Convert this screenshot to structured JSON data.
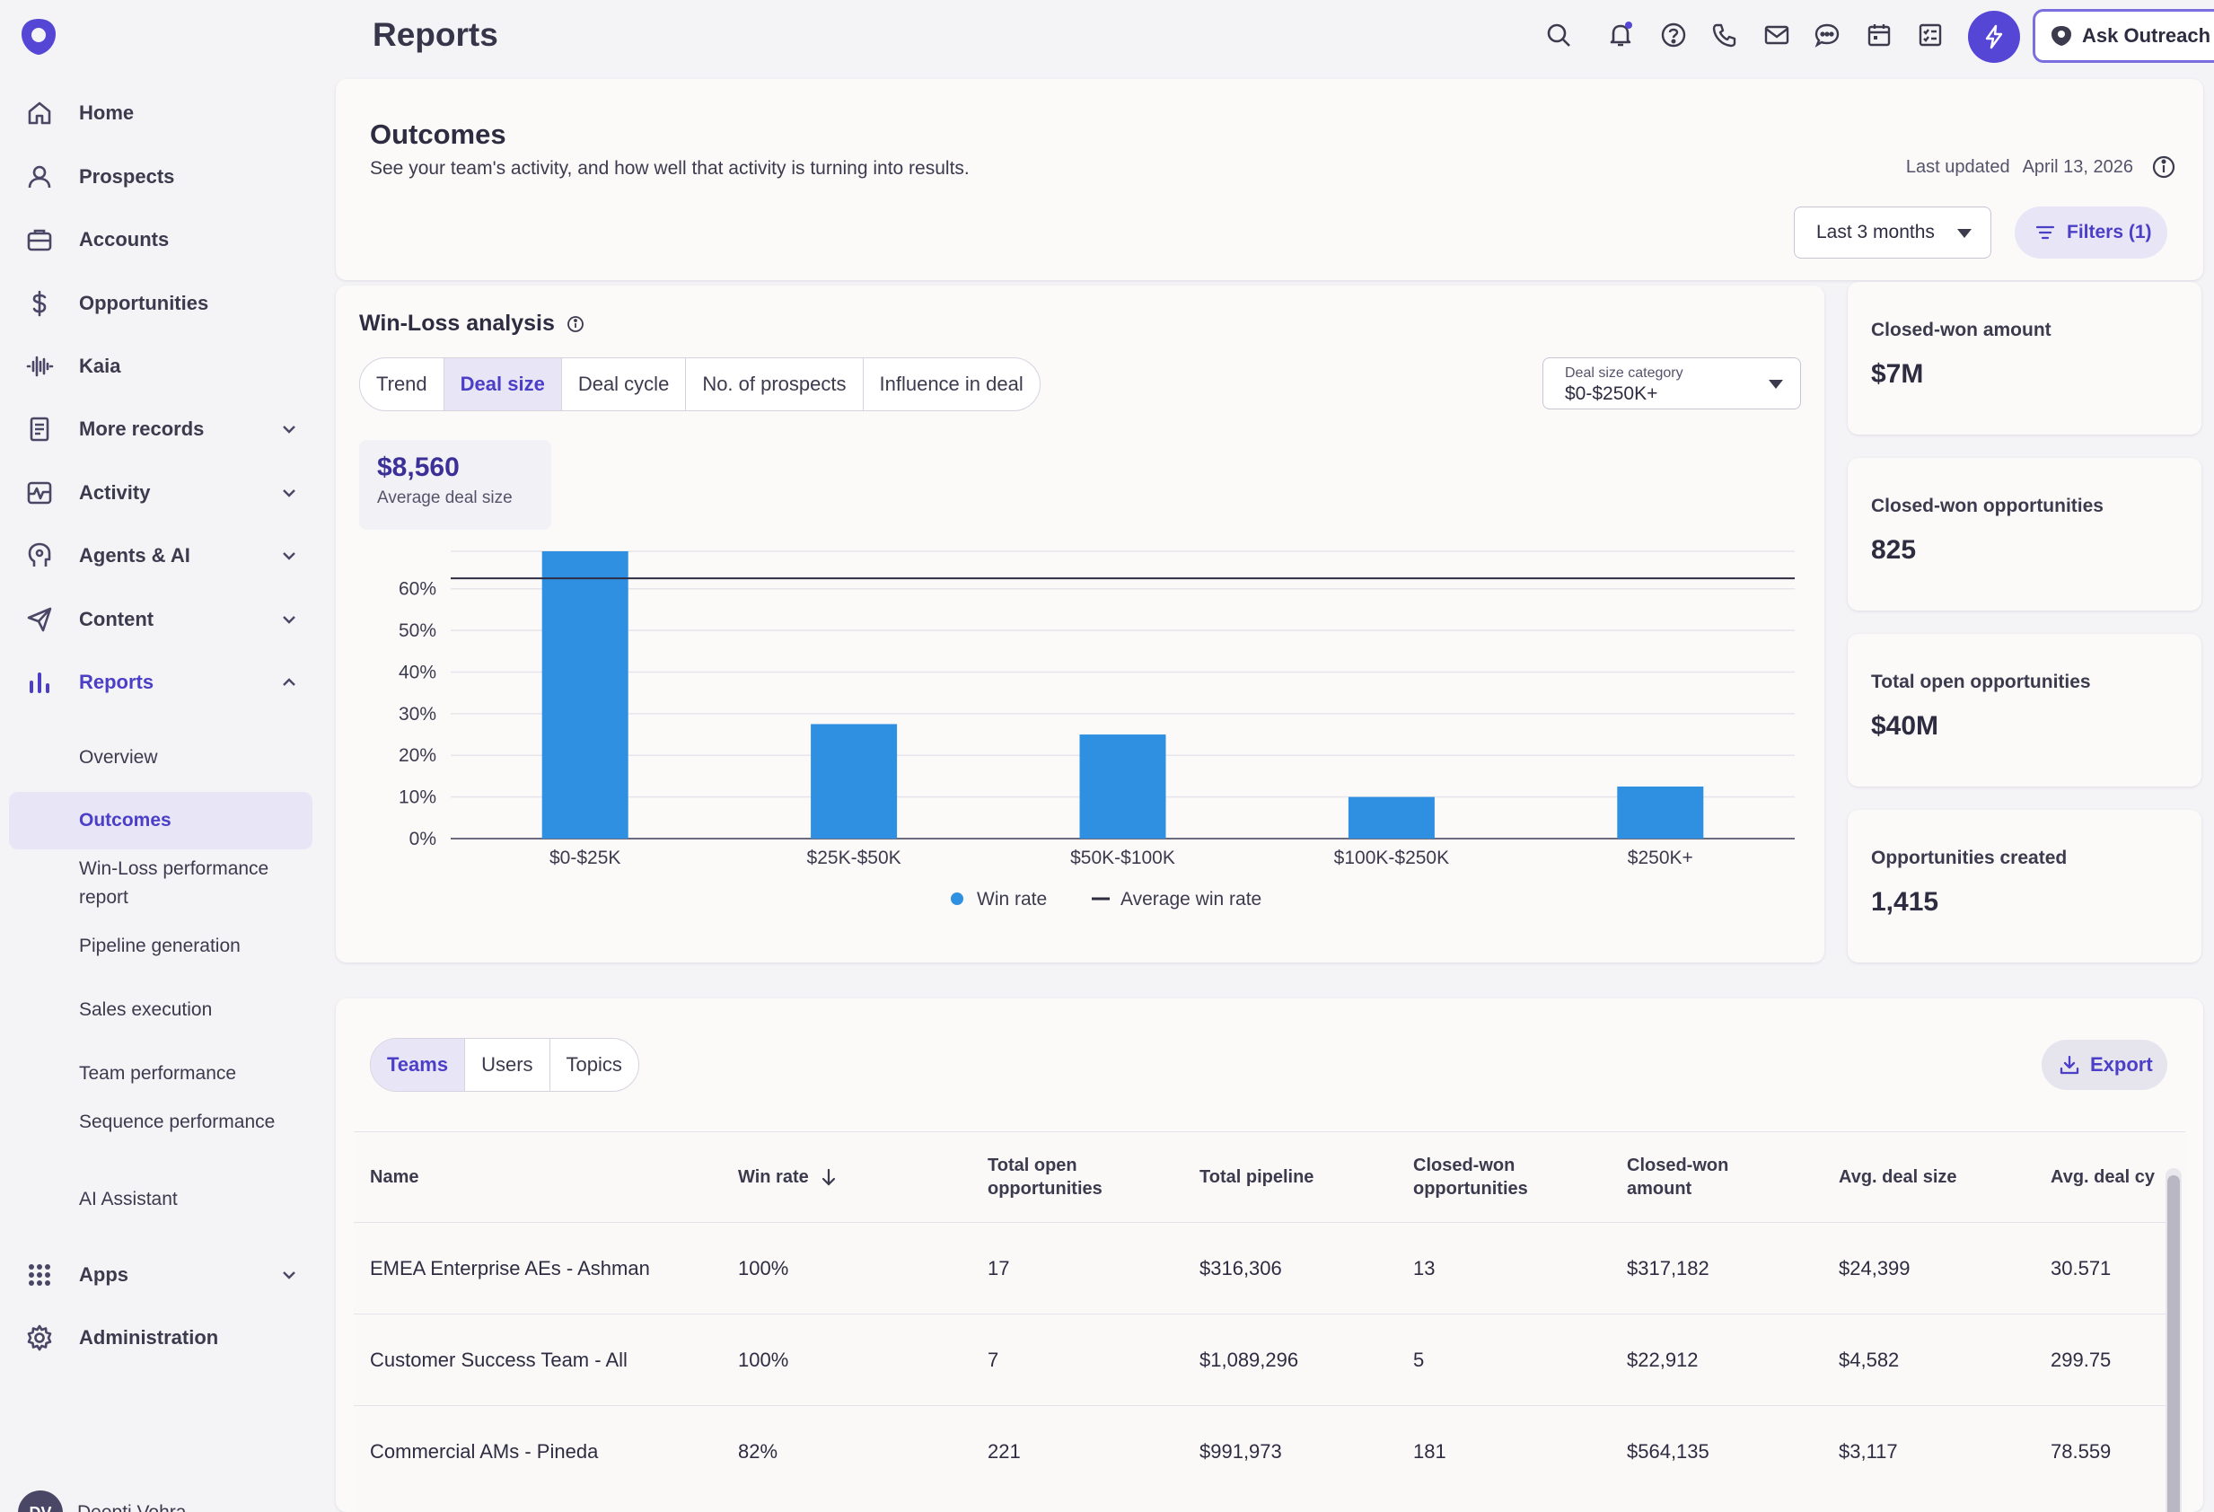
{
  "colors": {
    "accent": "#4b3ec7",
    "bar": "#2f8fe0",
    "avg_line": "#2e2c40"
  },
  "header": {
    "title": "Reports",
    "ask_label": "Ask Outreach"
  },
  "sidebar": {
    "items": [
      {
        "label": "Home",
        "icon": "home-icon"
      },
      {
        "label": "Prospects",
        "icon": "person-icon"
      },
      {
        "label": "Accounts",
        "icon": "briefcase-icon"
      },
      {
        "label": "Opportunities",
        "icon": "dollar-icon"
      },
      {
        "label": "Kaia",
        "icon": "waveform-icon"
      },
      {
        "label": "More records",
        "icon": "document-icon"
      },
      {
        "label": "Activity",
        "icon": "activity-icon"
      },
      {
        "label": "Agents & AI",
        "icon": "agent-head-icon"
      },
      {
        "label": "Content",
        "icon": "send-icon"
      },
      {
        "label": "Reports",
        "icon": "bar-chart-icon"
      }
    ],
    "sub_items": [
      "Overview",
      "Outcomes",
      "Win-Loss performance report",
      "Pipeline generation",
      "Sales execution",
      "Team performance",
      "Sequence performance",
      "AI Assistant"
    ],
    "apps_label": "Apps",
    "admin_label": "Administration",
    "user": {
      "initials": "DV",
      "name": "Deepti Vohra"
    }
  },
  "outcomes": {
    "title": "Outcomes",
    "subtitle": "See your team's activity, and how well that activity is turning into results.",
    "last_updated_label": "Last updated",
    "last_updated_date": "April 13, 2026",
    "range_label": "Last 3 months",
    "filters_label": "Filters (1)"
  },
  "winloss": {
    "title": "Win-Loss analysis",
    "tabs": [
      "Trend",
      "Deal size",
      "Deal cycle",
      "No. of prospects",
      "Influence in deal"
    ],
    "active_tab": "Deal size",
    "select_label": "Deal size category",
    "select_value": "$0-$250K+",
    "avg_value": "$8,560",
    "avg_label": "Average deal size"
  },
  "chart_data": {
    "type": "bar",
    "categories": [
      "$0-$25K",
      "$25K-$50K",
      "$50K-$100K",
      "$100K-$250K",
      "$250K+"
    ],
    "series": [
      {
        "name": "Win rate",
        "values": [
          69,
          27.5,
          25,
          10,
          12.5
        ]
      }
    ],
    "average_line": {
      "name": "Average win rate",
      "value": 62.5
    },
    "ylim": [
      0,
      69
    ],
    "yticks": [
      "0%",
      "10%",
      "20%",
      "30%",
      "40%",
      "50%",
      "60%"
    ],
    "legend_position": "bottom-center",
    "grid": true
  },
  "stats": [
    {
      "label": "Closed-won amount",
      "value": "$7M"
    },
    {
      "label": "Closed-won opportunities",
      "value": "825"
    },
    {
      "label": "Total open opportunities",
      "value": "$40M"
    },
    {
      "label": "Opportunities created",
      "value": "1,415"
    }
  ],
  "table": {
    "tabs": [
      "Teams",
      "Users",
      "Topics"
    ],
    "active_tab": "Teams",
    "export_label": "Export",
    "columns": [
      "Name",
      "Win rate",
      "Total open opportunities",
      "Total pipeline",
      "Closed-won opportunities",
      "Closed-won amount",
      "Avg. deal size",
      "Avg. deal cy"
    ],
    "rows": [
      [
        "EMEA Enterprise AEs - Ashman",
        "100%",
        "17",
        "$316,306",
        "13",
        "$317,182",
        "$24,399",
        "30.571"
      ],
      [
        "Customer Success Team - All",
        "100%",
        "7",
        "$1,089,296",
        "5",
        "$22,912",
        "$4,582",
        "299.75"
      ],
      [
        "Commercial AMs - Pineda",
        "82%",
        "221",
        "$991,973",
        "181",
        "$564,135",
        "$3,117",
        "78.559"
      ]
    ]
  }
}
